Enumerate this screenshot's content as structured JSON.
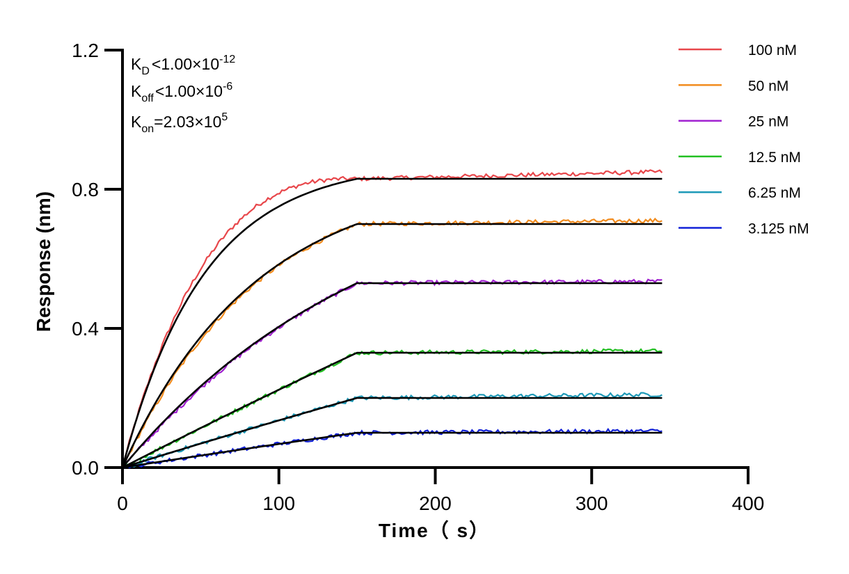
{
  "chart_data": {
    "type": "line",
    "xlabel": "Time（ s）",
    "ylabel": "Response (nm)",
    "xlim": [
      0,
      400
    ],
    "ylim": [
      0,
      1.2
    ],
    "x_ticks": [
      "0",
      "100",
      "200",
      "300",
      "400"
    ],
    "y_ticks": [
      "0.0",
      "0.4",
      "0.8",
      "1.2"
    ],
    "grid": false,
    "legend_position": "top-right",
    "association_end_s": 150,
    "data_end_s": 345,
    "kinetics": {
      "kd": {
        "sym": "K",
        "sub": "D",
        "rel": "<",
        "val": "1.00×10",
        "exp": "-12"
      },
      "koff": {
        "sym": "K",
        "sub": "off",
        "rel": "<",
        "val": "1.00×10",
        "exp": "-6"
      },
      "kon": {
        "sym": "K",
        "sub": "on",
        "rel": "=",
        "val": "2.03×10",
        "exp": "5"
      }
    },
    "series": [
      {
        "name": "100 nM",
        "color": "#e8474b",
        "plateau": 0.83,
        "tau": 52,
        "measured_end": 0.85
      },
      {
        "name": "50 nM",
        "color": "#f28c1e",
        "plateau": 0.7,
        "tau": 85,
        "measured_end": 0.71
      },
      {
        "name": "25 nM",
        "color": "#a020d0",
        "plateau": 0.53,
        "tau": 160,
        "measured_end": 0.535
      },
      {
        "name": "12.5 nM",
        "color": "#22c022",
        "plateau": 0.33,
        "tau": 1500,
        "measured_end": 0.335
      },
      {
        "name": "6.25 nM",
        "color": "#1e9ab8",
        "plateau": 0.2,
        "tau": 1500,
        "measured_end": 0.21
      },
      {
        "name": "3.125 nM",
        "color": "#1020d8",
        "plateau": 0.1,
        "tau": 1500,
        "measured_end": 0.105
      }
    ],
    "fit_color": "#000000"
  }
}
